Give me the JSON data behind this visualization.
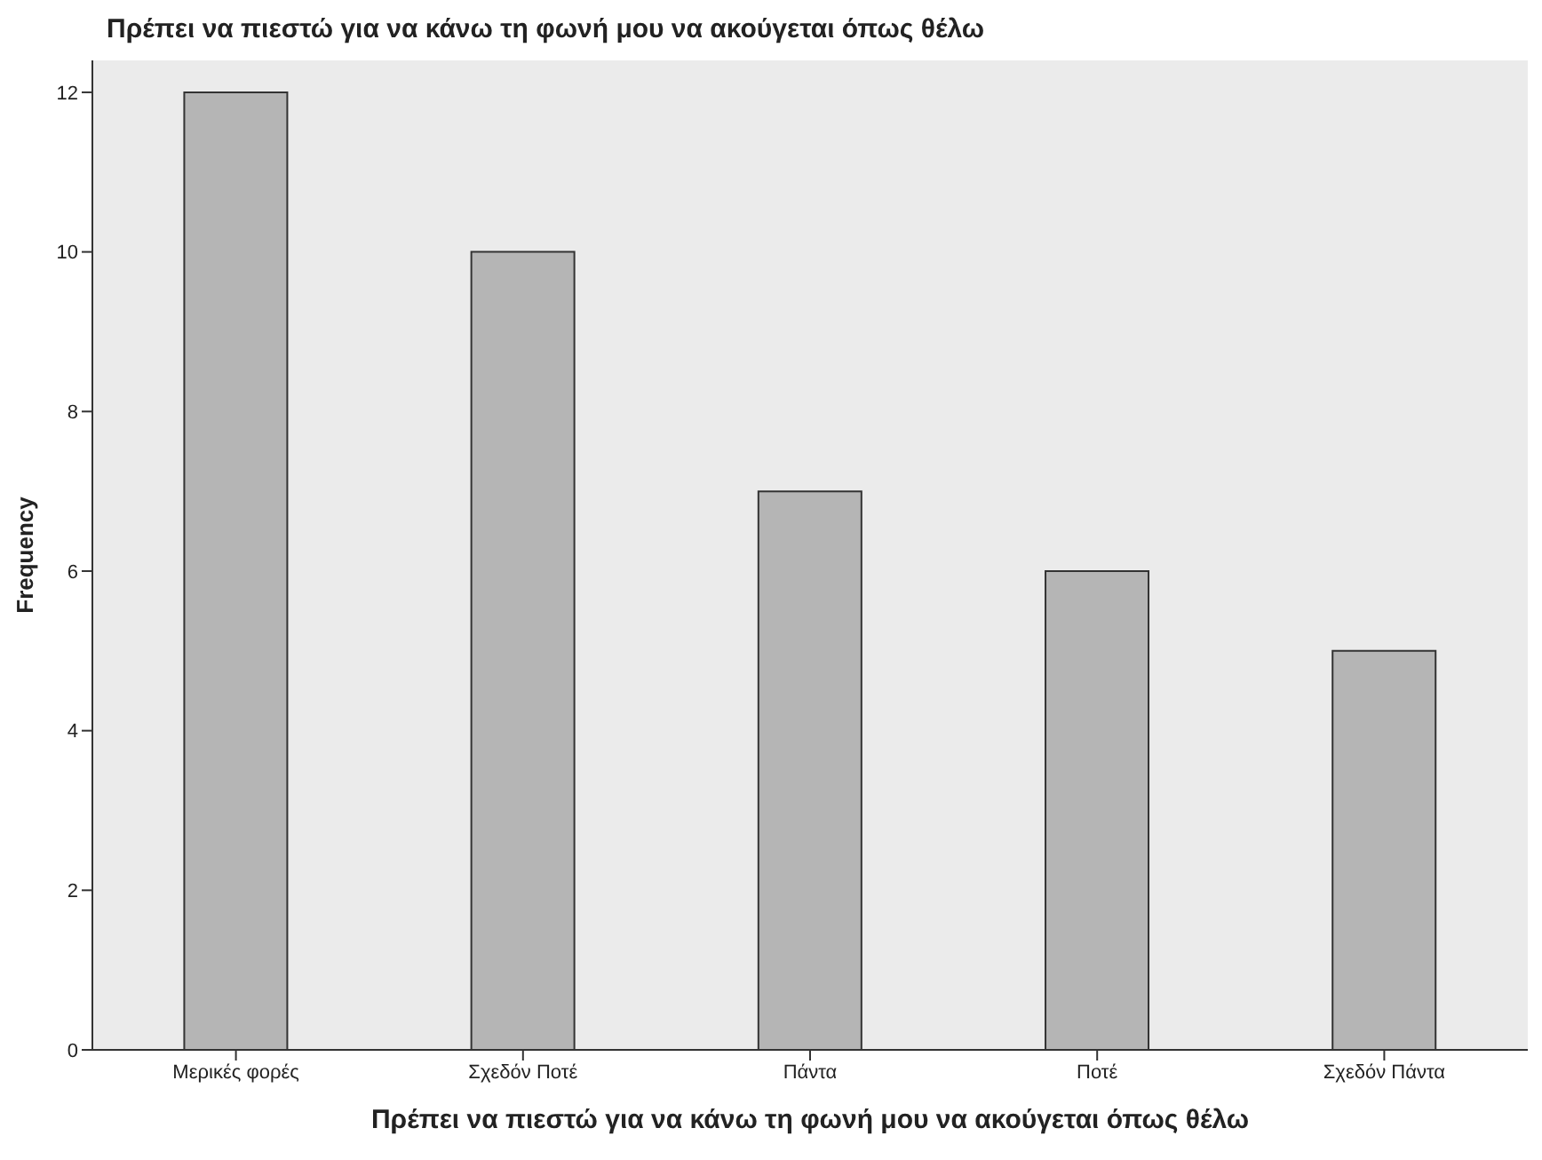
{
  "chart_data": {
    "type": "bar",
    "title": "Πρέπει να πιεστώ για να κάνω τη φωνή μου να ακούγεται όπως θέλω",
    "xlabel": "Πρέπει να πιεστώ για να κάνω τη φωνή μου να ακούγεται όπως θέλω",
    "ylabel": "Frequency",
    "categories": [
      "Μερικές φορές",
      "Σχεδόν Ποτέ",
      "Πάντα",
      "Ποτέ",
      "Σχεδόν Πάντα"
    ],
    "values": [
      12,
      10,
      7,
      6,
      5
    ],
    "color": "#b5b5b5",
    "ylim": [
      0,
      12.4
    ],
    "yticks": [
      0,
      2,
      4,
      6,
      8,
      10,
      12
    ]
  }
}
